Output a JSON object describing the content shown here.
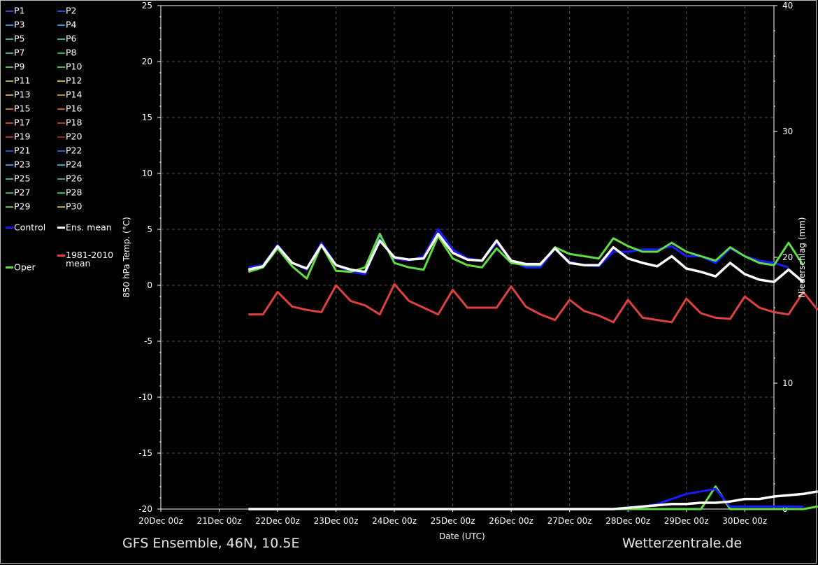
{
  "footer": {
    "left": "GFS Ensemble, 46N, 10.5E",
    "right": "Wetterzentrale.de"
  },
  "legend": [
    {
      "label": "P1",
      "color": "#2050c8"
    },
    {
      "label": "P2",
      "color": "#2050c8"
    },
    {
      "label": "P3",
      "color": "#3a8fd0"
    },
    {
      "label": "P4",
      "color": "#3a8fd0"
    },
    {
      "label": "P5",
      "color": "#40b0b0"
    },
    {
      "label": "P6",
      "color": "#40b0a0"
    },
    {
      "label": "P7",
      "color": "#40b070"
    },
    {
      "label": "P8",
      "color": "#30a050"
    },
    {
      "label": "P9",
      "color": "#50c030"
    },
    {
      "label": "P10",
      "color": "#50c030"
    },
    {
      "label": "P11",
      "color": "#b0b030"
    },
    {
      "label": "P12",
      "color": "#c0b030"
    },
    {
      "label": "P13",
      "color": "#c0a040"
    },
    {
      "label": "P14",
      "color": "#c09030"
    },
    {
      "label": "P15",
      "color": "#c07030"
    },
    {
      "label": "P16",
      "color": "#b06020"
    },
    {
      "label": "P17",
      "color": "#c05020"
    },
    {
      "label": "P18",
      "color": "#b04020"
    },
    {
      "label": "P19",
      "color": "#a03020"
    },
    {
      "label": "P20",
      "color": "#902818"
    },
    {
      "label": "P21",
      "color": "#2050c8"
    },
    {
      "label": "P22",
      "color": "#2a60c8"
    },
    {
      "label": "P23",
      "color": "#3a90d0"
    },
    {
      "label": "P24",
      "color": "#3aa0c8"
    },
    {
      "label": "P25",
      "color": "#40b0a0"
    },
    {
      "label": "P26",
      "color": "#40a080"
    },
    {
      "label": "P27",
      "color": "#40b050"
    },
    {
      "label": "P28",
      "color": "#40b040"
    },
    {
      "label": "P29",
      "color": "#60c030"
    },
    {
      "label": "P30",
      "color": "#c0b030"
    },
    {
      "label": "Control",
      "color": "#1a1aff"
    },
    {
      "label": "Ens. mean",
      "color": "#ffffff"
    },
    {
      "label": "1981-2010\nmean",
      "color": "#e04040"
    },
    {
      "label": "Oper",
      "color": "#60e040"
    }
  ],
  "chart_data": {
    "type": "line",
    "xlabel": "Date (UTC)",
    "ylabel": "850 hPa Temp. (°C)",
    "y2label": "Niederschlag (mm)",
    "ylim": [
      -20,
      25
    ],
    "y2lim": [
      0,
      40
    ],
    "yticks": [
      -20,
      -15,
      -10,
      -5,
      0,
      5,
      10,
      15,
      20,
      25
    ],
    "y2ticks": [
      0,
      10,
      20,
      30,
      40
    ],
    "grid": true,
    "x_categories": [
      "20Dec 00z",
      "21Dec 00z",
      "22Dec 00z",
      "23Dec 00z",
      "24Dec 00z",
      "25Dec 00z",
      "26Dec 00z",
      "27Dec 00z",
      "28Dec 00z",
      "29Dec 00z",
      "30Dec 00z"
    ],
    "x_range_days": [
      0,
      10.5
    ],
    "x_step_days": 0.25,
    "series": [
      {
        "name": "Control",
        "color": "#1a1aff",
        "axis": "left",
        "x_start": 1.5,
        "values": [
          1.6,
          1.8,
          3.6,
          2.0,
          1.4,
          3.8,
          1.8,
          1.2,
          1.0,
          4.3,
          2.4,
          2.2,
          2.6,
          5.0,
          3.2,
          2.4,
          2.2,
          3.8,
          2.2,
          1.6,
          1.6,
          3.3,
          2.1,
          1.8,
          1.7,
          3.0,
          3.0,
          3.2,
          3.2,
          3.5,
          2.6,
          2.6,
          2.0,
          3.3,
          2.6,
          2.2,
          2.0,
          1.6
        ]
      },
      {
        "name": "Ens. mean",
        "color": "#ffffff",
        "axis": "left",
        "x_start": 1.5,
        "values": [
          1.4,
          1.7,
          3.5,
          2.0,
          1.5,
          3.6,
          1.8,
          1.4,
          1.2,
          4.0,
          2.5,
          2.3,
          2.4,
          4.6,
          2.9,
          2.3,
          2.2,
          4.0,
          2.2,
          1.9,
          1.9,
          3.3,
          2.0,
          1.8,
          1.8,
          3.4,
          2.4,
          2.0,
          1.7,
          2.6,
          1.5,
          1.2,
          0.8,
          2.0,
          1.0,
          0.5,
          0.3,
          1.4,
          0.3
        ]
      },
      {
        "name": "Oper",
        "color": "#60e040",
        "axis": "left",
        "x_start": 1.5,
        "values": [
          1.2,
          1.6,
          3.3,
          1.7,
          0.6,
          3.6,
          1.3,
          1.2,
          1.6,
          4.6,
          2.0,
          1.6,
          1.4,
          4.4,
          2.4,
          1.8,
          1.6,
          3.3,
          2.0,
          1.8,
          1.8,
          3.4,
          2.8,
          2.6,
          2.4,
          4.2,
          3.5,
          3.0,
          3.0,
          3.8,
          3.0,
          2.6,
          2.2,
          3.4,
          2.6,
          2.0,
          1.8,
          3.8,
          1.8
        ]
      },
      {
        "name": "1981-2010 mean",
        "color": "#e04040",
        "axis": "left",
        "x_start": 1.5,
        "values": [
          -2.6,
          -2.6,
          -0.6,
          -1.9,
          -2.2,
          -2.4,
          0.0,
          -1.4,
          -1.8,
          -2.6,
          0.1,
          -1.4,
          -2.0,
          -2.6,
          -0.4,
          -2.0,
          -2.0,
          -2.0,
          -0.1,
          -1.9,
          -2.6,
          -3.1,
          -1.3,
          -2.3,
          -2.7,
          -3.3,
          -1.3,
          -2.9,
          -3.1,
          -3.3,
          -1.2,
          -2.5,
          -2.9,
          -3.0,
          -1.0,
          -2.0,
          -2.4,
          -2.6,
          -0.6,
          -2.2
        ]
      },
      {
        "name": "Control precip",
        "color": "#1a1aff",
        "axis": "right",
        "x_start": 1.5,
        "values": [
          0,
          0,
          0,
          0,
          0,
          0,
          0,
          0,
          0,
          0,
          0,
          0,
          0,
          0,
          0,
          0,
          0,
          0,
          0,
          0,
          0,
          0,
          0,
          0,
          0,
          0,
          0.1,
          0.2,
          0.4,
          0.8,
          1.2,
          1.4,
          1.6,
          0.2,
          0.2,
          0.2,
          0.2,
          0.2,
          0.2
        ]
      },
      {
        "name": "Ens. mean precip",
        "color": "#ffffff",
        "axis": "right",
        "x_start": 1.5,
        "values": [
          0,
          0,
          0,
          0,
          0,
          0,
          0,
          0,
          0,
          0,
          0,
          0,
          0,
          0,
          0,
          0,
          0,
          0,
          0,
          0,
          0,
          0,
          0,
          0,
          0,
          0,
          0.1,
          0.2,
          0.3,
          0.4,
          0.4,
          0.5,
          0.5,
          0.6,
          0.8,
          0.8,
          1.0,
          1.1,
          1.2,
          1.4
        ]
      },
      {
        "name": "Oper precip",
        "color": "#60e040",
        "axis": "right",
        "x_start": 1.5,
        "values": [
          0,
          0,
          0,
          0,
          0,
          0,
          0,
          0,
          0,
          0,
          0,
          0,
          0,
          0,
          0,
          0,
          0,
          0,
          0,
          0,
          0,
          0,
          0,
          0,
          0,
          0,
          0,
          0,
          0,
          0,
          0,
          0,
          1.8,
          0,
          0,
          0,
          0,
          0,
          0,
          0.2
        ]
      }
    ]
  }
}
